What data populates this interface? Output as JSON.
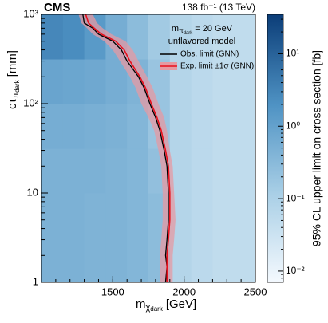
{
  "chart_data": {
    "type": "heatmap",
    "experiment": "CMS",
    "lumi": "138 fb⁻¹ (13 TeV)",
    "xlabel": {
      "main": "m",
      "sub": "χ",
      "subsub": "dark",
      "unit": "[GeV]"
    },
    "ylabel": {
      "main": "cτ",
      "sub": "π",
      "subsub": "dark",
      "unit": "[mm]"
    },
    "zlabel": "95% CL upper limit on cross section [fb]",
    "legend_title": {
      "main": "m",
      "sub": "π",
      "subsub": "dark",
      "rest": "= 20 GeV"
    },
    "legend_subtitle": "unflavored model",
    "xlim": [
      1000,
      2500
    ],
    "xticks": [
      1500,
      2000,
      2500
    ],
    "ylim": [
      1,
      1000
    ],
    "ylog": true,
    "yticks": [
      1,
      10,
      {
        "value": 100,
        "label": "10²"
      },
      {
        "value": 1000,
        "label": "10³"
      }
    ],
    "zlim": [
      0.007,
      35
    ],
    "zlog": true,
    "zticks": [
      {
        "value": 0.01,
        "label": "10⁻²"
      },
      {
        "value": 0.1,
        "label": "10⁻¹"
      },
      {
        "value": 1,
        "label": "10⁰"
      },
      {
        "value": 10,
        "label": "10¹"
      }
    ],
    "colormap": [
      "#f4f9fe",
      "#a9cfe6",
      "#4f93c4",
      "#0b3d78"
    ],
    "xbins": [
      1000,
      1150,
      1300,
      1450,
      1600,
      1750,
      1900,
      2050,
      2200,
      2350,
      2500
    ],
    "ybins": [
      1,
      3.16,
      10,
      31.6,
      100,
      316,
      1000
    ],
    "z": [
      [
        0.5,
        0.5,
        0.45,
        0.45,
        0.4,
        0.3,
        0.08,
        0.06,
        0.05,
        0.05
      ],
      [
        0.5,
        0.5,
        0.45,
        0.45,
        0.4,
        0.3,
        0.08,
        0.06,
        0.05,
        0.05
      ],
      [
        0.5,
        0.5,
        0.5,
        0.45,
        0.4,
        0.25,
        0.08,
        0.06,
        0.05,
        0.05
      ],
      [
        0.6,
        0.6,
        0.55,
        0.5,
        0.4,
        0.2,
        0.08,
        0.06,
        0.05,
        0.05
      ],
      [
        0.9,
        0.85,
        0.75,
        0.6,
        0.45,
        0.2,
        0.08,
        0.06,
        0.05,
        0.05
      ],
      [
        3,
        2.5,
        1.5,
        0.6,
        0.3,
        0.15,
        0.08,
        0.06,
        0.05,
        0.05
      ]
    ],
    "contour_y": [
      1000,
      800,
      700,
      600,
      500,
      400,
      300,
      200,
      150,
      100,
      70,
      50,
      30,
      20,
      10,
      5,
      3,
      2,
      1.5,
      1
    ],
    "series": [
      {
        "name": "Obs. limit (GNN)",
        "color": "#000000",
        "x": [
          1290,
          1300,
          1360,
          1400,
          1500,
          1560,
          1600,
          1680,
          1720,
          1760,
          1800,
          1830,
          1860,
          1880,
          1890,
          1890,
          1880,
          1870,
          1880,
          1870
        ]
      },
      {
        "name": "Exp. limit ±1σ (GNN)",
        "color": "#e8101c",
        "band_color": "#e59aa3",
        "x": [
          1310,
          1330,
          1370,
          1420,
          1520,
          1580,
          1620,
          1690,
          1730,
          1770,
          1810,
          1840,
          1870,
          1890,
          1900,
          1900,
          1890,
          1880,
          1880,
          1880
        ],
        "band_low": [
          1260,
          1280,
          1320,
          1360,
          1440,
          1500,
          1550,
          1620,
          1660,
          1700,
          1750,
          1790,
          1820,
          1840,
          1850,
          1850,
          1840,
          1830,
          1830,
          1830
        ],
        "band_high": [
          1360,
          1390,
          1430,
          1490,
          1590,
          1640,
          1680,
          1740,
          1780,
          1820,
          1860,
          1880,
          1900,
          1920,
          1930,
          1940,
          1930,
          1920,
          1920,
          1920
        ]
      }
    ]
  }
}
